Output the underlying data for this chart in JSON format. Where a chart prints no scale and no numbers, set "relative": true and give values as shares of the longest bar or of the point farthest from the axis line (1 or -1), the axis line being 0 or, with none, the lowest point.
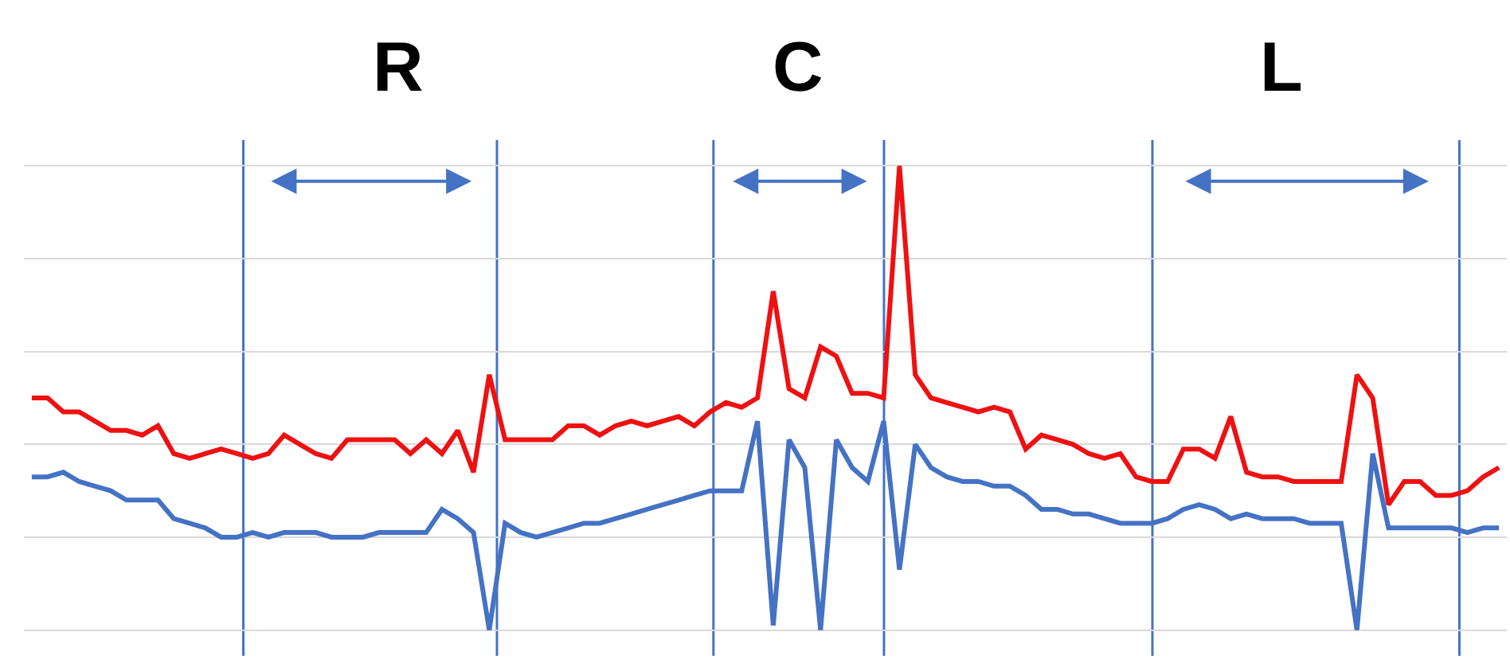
{
  "chart_data": {
    "type": "line",
    "relative": true,
    "grid": "y",
    "categories": [
      null,
      null,
      null,
      null,
      null,
      null,
      null,
      null,
      null,
      null,
      null,
      null,
      null,
      null,
      null,
      null,
      null,
      null,
      null,
      null,
      null,
      null,
      null,
      null,
      null,
      null,
      null,
      null,
      null,
      null,
      null,
      null,
      null,
      null,
      null,
      null,
      null,
      null,
      null,
      null,
      null,
      null,
      null,
      null,
      null,
      null,
      null,
      null,
      null,
      null,
      null,
      null,
      null,
      null,
      null,
      null,
      null,
      null,
      null,
      null,
      null,
      null,
      null,
      null,
      null,
      null,
      null,
      null,
      null,
      null,
      null,
      null,
      null,
      null,
      null,
      null,
      null,
      null,
      null,
      null,
      null,
      null,
      null,
      null,
      null,
      null,
      null,
      null,
      null,
      null,
      null,
      null,
      null,
      null
    ],
    "series": [
      {
        "color": "#ee1111",
        "values": [
          0.5,
          0.5,
          0.47,
          0.47,
          0.45,
          0.43,
          0.43,
          0.42,
          0.44,
          0.38,
          0.37,
          0.38,
          0.39,
          0.38,
          0.37,
          0.38,
          0.42,
          0.4,
          0.38,
          0.37,
          0.41,
          0.41,
          0.41,
          0.41,
          0.38,
          0.41,
          0.38,
          0.43,
          0.34,
          0.55,
          0.41,
          0.41,
          0.41,
          0.41,
          0.44,
          0.44,
          0.42,
          0.44,
          0.45,
          0.44,
          0.45,
          0.46,
          0.44,
          0.47,
          0.49,
          0.48,
          0.5,
          0.73,
          0.52,
          0.5,
          0.61,
          0.59,
          0.51,
          0.51,
          0.5,
          1,
          0.55,
          0.5,
          0.49,
          0.48,
          0.47,
          0.48,
          0.47,
          0.39,
          0.42,
          0.41,
          0.4,
          0.38,
          0.37,
          0.38,
          0.33,
          0.32,
          0.32,
          0.39,
          0.39,
          0.37,
          0.46,
          0.34,
          0.33,
          0.33,
          0.32,
          0.32,
          0.32,
          0.32,
          0.55,
          0.5,
          0.27,
          0.32,
          0.32,
          0.29,
          0.29,
          0.3,
          0.33,
          0.35
        ]
      },
      {
        "color": "#4472c4",
        "values": [
          0.33,
          0.33,
          0.34,
          0.32,
          0.31,
          0.3,
          0.28,
          0.28,
          0.28,
          0.24,
          0.23,
          0.22,
          0.2,
          0.2,
          0.21,
          0.2,
          0.21,
          0.21,
          0.21,
          0.2,
          0.2,
          0.2,
          0.21,
          0.21,
          0.21,
          0.21,
          0.26,
          0.24,
          0.21,
          0,
          0.23,
          0.21,
          0.2,
          0.21,
          0.22,
          0.23,
          0.23,
          0.24,
          0.25,
          0.26,
          0.27,
          0.28,
          0.29,
          0.3,
          0.3,
          0.3,
          0.45,
          0.01,
          0.41,
          0.35,
          0,
          0.41,
          0.35,
          0.32,
          0.45,
          0.13,
          0.4,
          0.35,
          0.33,
          0.32,
          0.32,
          0.31,
          0.31,
          0.29,
          0.26,
          0.26,
          0.25,
          0.25,
          0.24,
          0.23,
          0.23,
          0.23,
          0.24,
          0.26,
          0.27,
          0.26,
          0.24,
          0.25,
          0.24,
          0.24,
          0.24,
          0.23,
          0.23,
          0.23,
          0,
          0.38,
          0.22,
          0.22,
          0.22,
          0.22,
          0.22,
          0.21,
          0.22,
          0.22
        ]
      }
    ],
    "annotations": [
      "R",
      "C",
      "L"
    ]
  }
}
